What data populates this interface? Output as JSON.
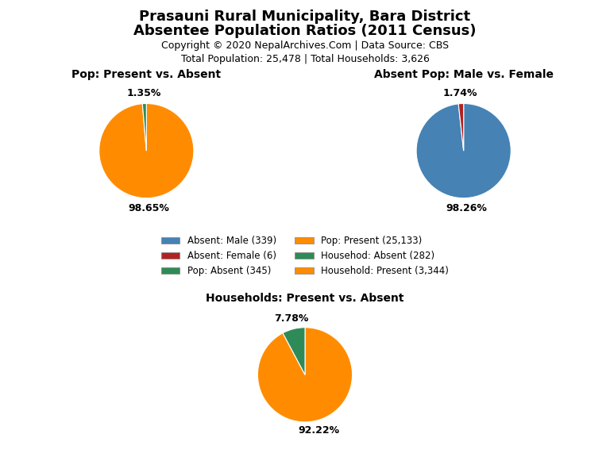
{
  "title": "Prasauni Rural Municipality, Bara District",
  "subtitle": "Absentee Population Ratios (2011 Census)",
  "annotations": [
    "Copyright © 2020 NepalArchives.Com | Data Source: CBS",
    "Total Population: 25,478 | Total Households: 3,626"
  ],
  "legend": "center",
  "legend_entries": [
    {
      "name": "Absent: Male (339)",
      "color": "#4682B4"
    },
    {
      "name": "Absent: Female (6)",
      "color": "#B22222"
    },
    {
      "name": "Pop: Absent (345)",
      "color": "#2E8B57"
    },
    {
      "name": "Pop: Present (25,133)",
      "color": "#FF8C00"
    },
    {
      "name": "Househod: Absent (282)",
      "color": "#2E8B57"
    },
    {
      "name": "Household: Present (3,344)",
      "color": "#FF8C00"
    }
  ],
  "chart_data": [
    {
      "type": "pie",
      "title": "Pop: Present vs. Absent",
      "values": [
        98.65,
        1.35
      ],
      "value_labels": [
        "98.65%",
        "1.35%"
      ],
      "colors": [
        "#FF8C00",
        "#2E8B57"
      ]
    },
    {
      "type": "pie",
      "title": "Absent Pop: Male vs. Female",
      "values": [
        98.26,
        1.74
      ],
      "value_labels": [
        "98.26%",
        "1.74%"
      ],
      "colors": [
        "#4682B4",
        "#B22222"
      ]
    },
    {
      "type": "pie",
      "title": "Households: Present vs. Absent",
      "values": [
        92.22,
        7.78
      ],
      "value_labels": [
        "92.22%",
        "7.78%"
      ],
      "colors": [
        "#FF8C00",
        "#2E8B57"
      ]
    }
  ]
}
